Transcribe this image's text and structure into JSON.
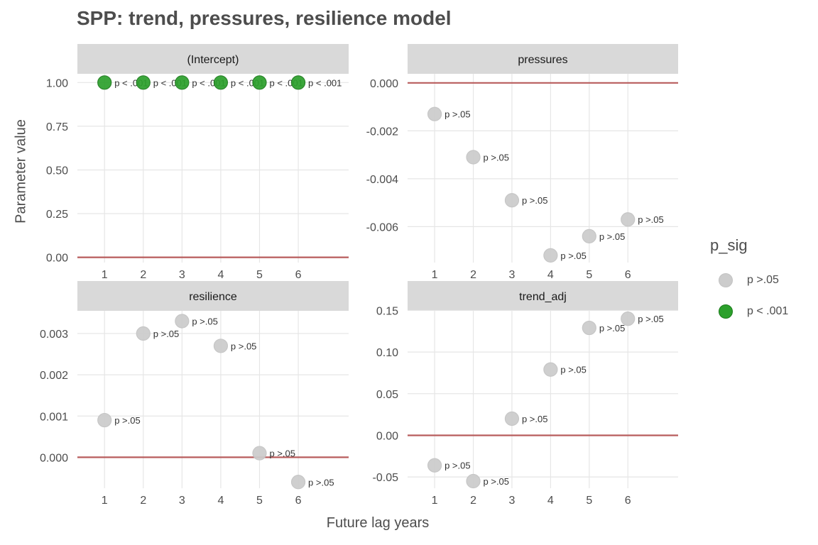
{
  "title": "SPP: trend, pressures, resilience model",
  "xlabel": "Future lag years",
  "ylabel": "Parameter value",
  "legend": {
    "title": "p_sig",
    "items": [
      {
        "label": "p >.05",
        "fill": "#cccccc",
        "stroke": "#c2c2c2"
      },
      {
        "label": "p < .001",
        "fill": "#2ca02c",
        "stroke": "#1a7a1a"
      }
    ]
  },
  "colors": {
    "zero_line": "#b85c5c",
    "strip_bg": "#d9d9d9",
    "grid": "#e6e6e6",
    "text": "#4d4d4d",
    "label_text": "#333333"
  },
  "chart_data": [
    {
      "type": "scatter",
      "panel": "(Intercept)",
      "x": [
        1,
        2,
        3,
        4,
        5,
        6
      ],
      "y": [
        1.0,
        1.0,
        1.0,
        1.0,
        1.0,
        1.0
      ],
      "p_sig": [
        "p < .001",
        "p < .001",
        "p < .001",
        "p < .001",
        "p < .001",
        "p < .001"
      ],
      "xlim": [
        0.3,
        7.3
      ],
      "ylim": [
        -0.03,
        1.05
      ],
      "yticks": [
        0.0,
        0.25,
        0.5,
        0.75,
        1.0
      ],
      "ytick_labels": [
        "0.00",
        "0.25",
        "0.50",
        "0.75",
        "1.00"
      ],
      "xticks": [
        1,
        2,
        3,
        4,
        5,
        6
      ],
      "xtick_labels": [
        "1",
        "2",
        "3",
        "4",
        "5",
        "6"
      ],
      "hline": 0
    },
    {
      "type": "scatter",
      "panel": "pressures",
      "x": [
        1,
        2,
        3,
        4,
        5,
        6
      ],
      "y": [
        -0.0013,
        -0.0031,
        -0.0049,
        -0.0072,
        -0.0064,
        -0.0057
      ],
      "p_sig": [
        "p >.05",
        "p >.05",
        "p >.05",
        "p >.05",
        "p >.05",
        "p >.05"
      ],
      "xlim": [
        0.3,
        7.3
      ],
      "ylim": [
        -0.0075,
        0.00038
      ],
      "yticks": [
        0.0,
        -0.002,
        -0.004,
        -0.006
      ],
      "ytick_labels": [
        "0.000",
        "-0.002",
        "-0.004",
        "-0.006"
      ],
      "xticks": [
        1,
        2,
        3,
        4,
        5,
        6
      ],
      "xtick_labels": [
        "1",
        "2",
        "3",
        "4",
        "5",
        "6"
      ],
      "hline": 0
    },
    {
      "type": "scatter",
      "panel": "resilience",
      "x": [
        1,
        2,
        3,
        4,
        5,
        6
      ],
      "y": [
        0.0009,
        0.003,
        0.0033,
        0.0027,
        0.0001,
        -0.0006
      ],
      "p_sig": [
        "p >.05",
        "p >.05",
        "p >.05",
        "p >.05",
        "p >.05",
        "p >.05"
      ],
      "xlim": [
        0.3,
        7.3
      ],
      "ylim": [
        -0.00075,
        0.00355
      ],
      "yticks": [
        0.0,
        0.001,
        0.002,
        0.003
      ],
      "ytick_labels": [
        "0.000",
        "0.001",
        "0.002",
        "0.003"
      ],
      "xticks": [
        1,
        2,
        3,
        4,
        5,
        6
      ],
      "xtick_labels": [
        "1",
        "2",
        "3",
        "4",
        "5",
        "6"
      ],
      "hline": 0
    },
    {
      "type": "scatter",
      "panel": "trend_adj",
      "x": [
        1,
        2,
        3,
        4,
        5,
        6
      ],
      "y": [
        -0.036,
        -0.055,
        0.02,
        0.079,
        0.129,
        0.14
      ],
      "p_sig": [
        "p >.05",
        "p >.05",
        "p >.05",
        "p >.05",
        "p >.05",
        "p >.05"
      ],
      "xlim": [
        0.3,
        7.3
      ],
      "ylim": [
        -0.0635,
        0.1495
      ],
      "yticks": [
        -0.05,
        0.0,
        0.05,
        0.1,
        0.15
      ],
      "ytick_labels": [
        "-0.05",
        "0.00",
        "0.05",
        "0.10",
        "0.15"
      ],
      "xticks": [
        1,
        2,
        3,
        4,
        5,
        6
      ],
      "xtick_labels": [
        "1",
        "2",
        "3",
        "4",
        "5",
        "6"
      ],
      "hline": 0
    }
  ]
}
